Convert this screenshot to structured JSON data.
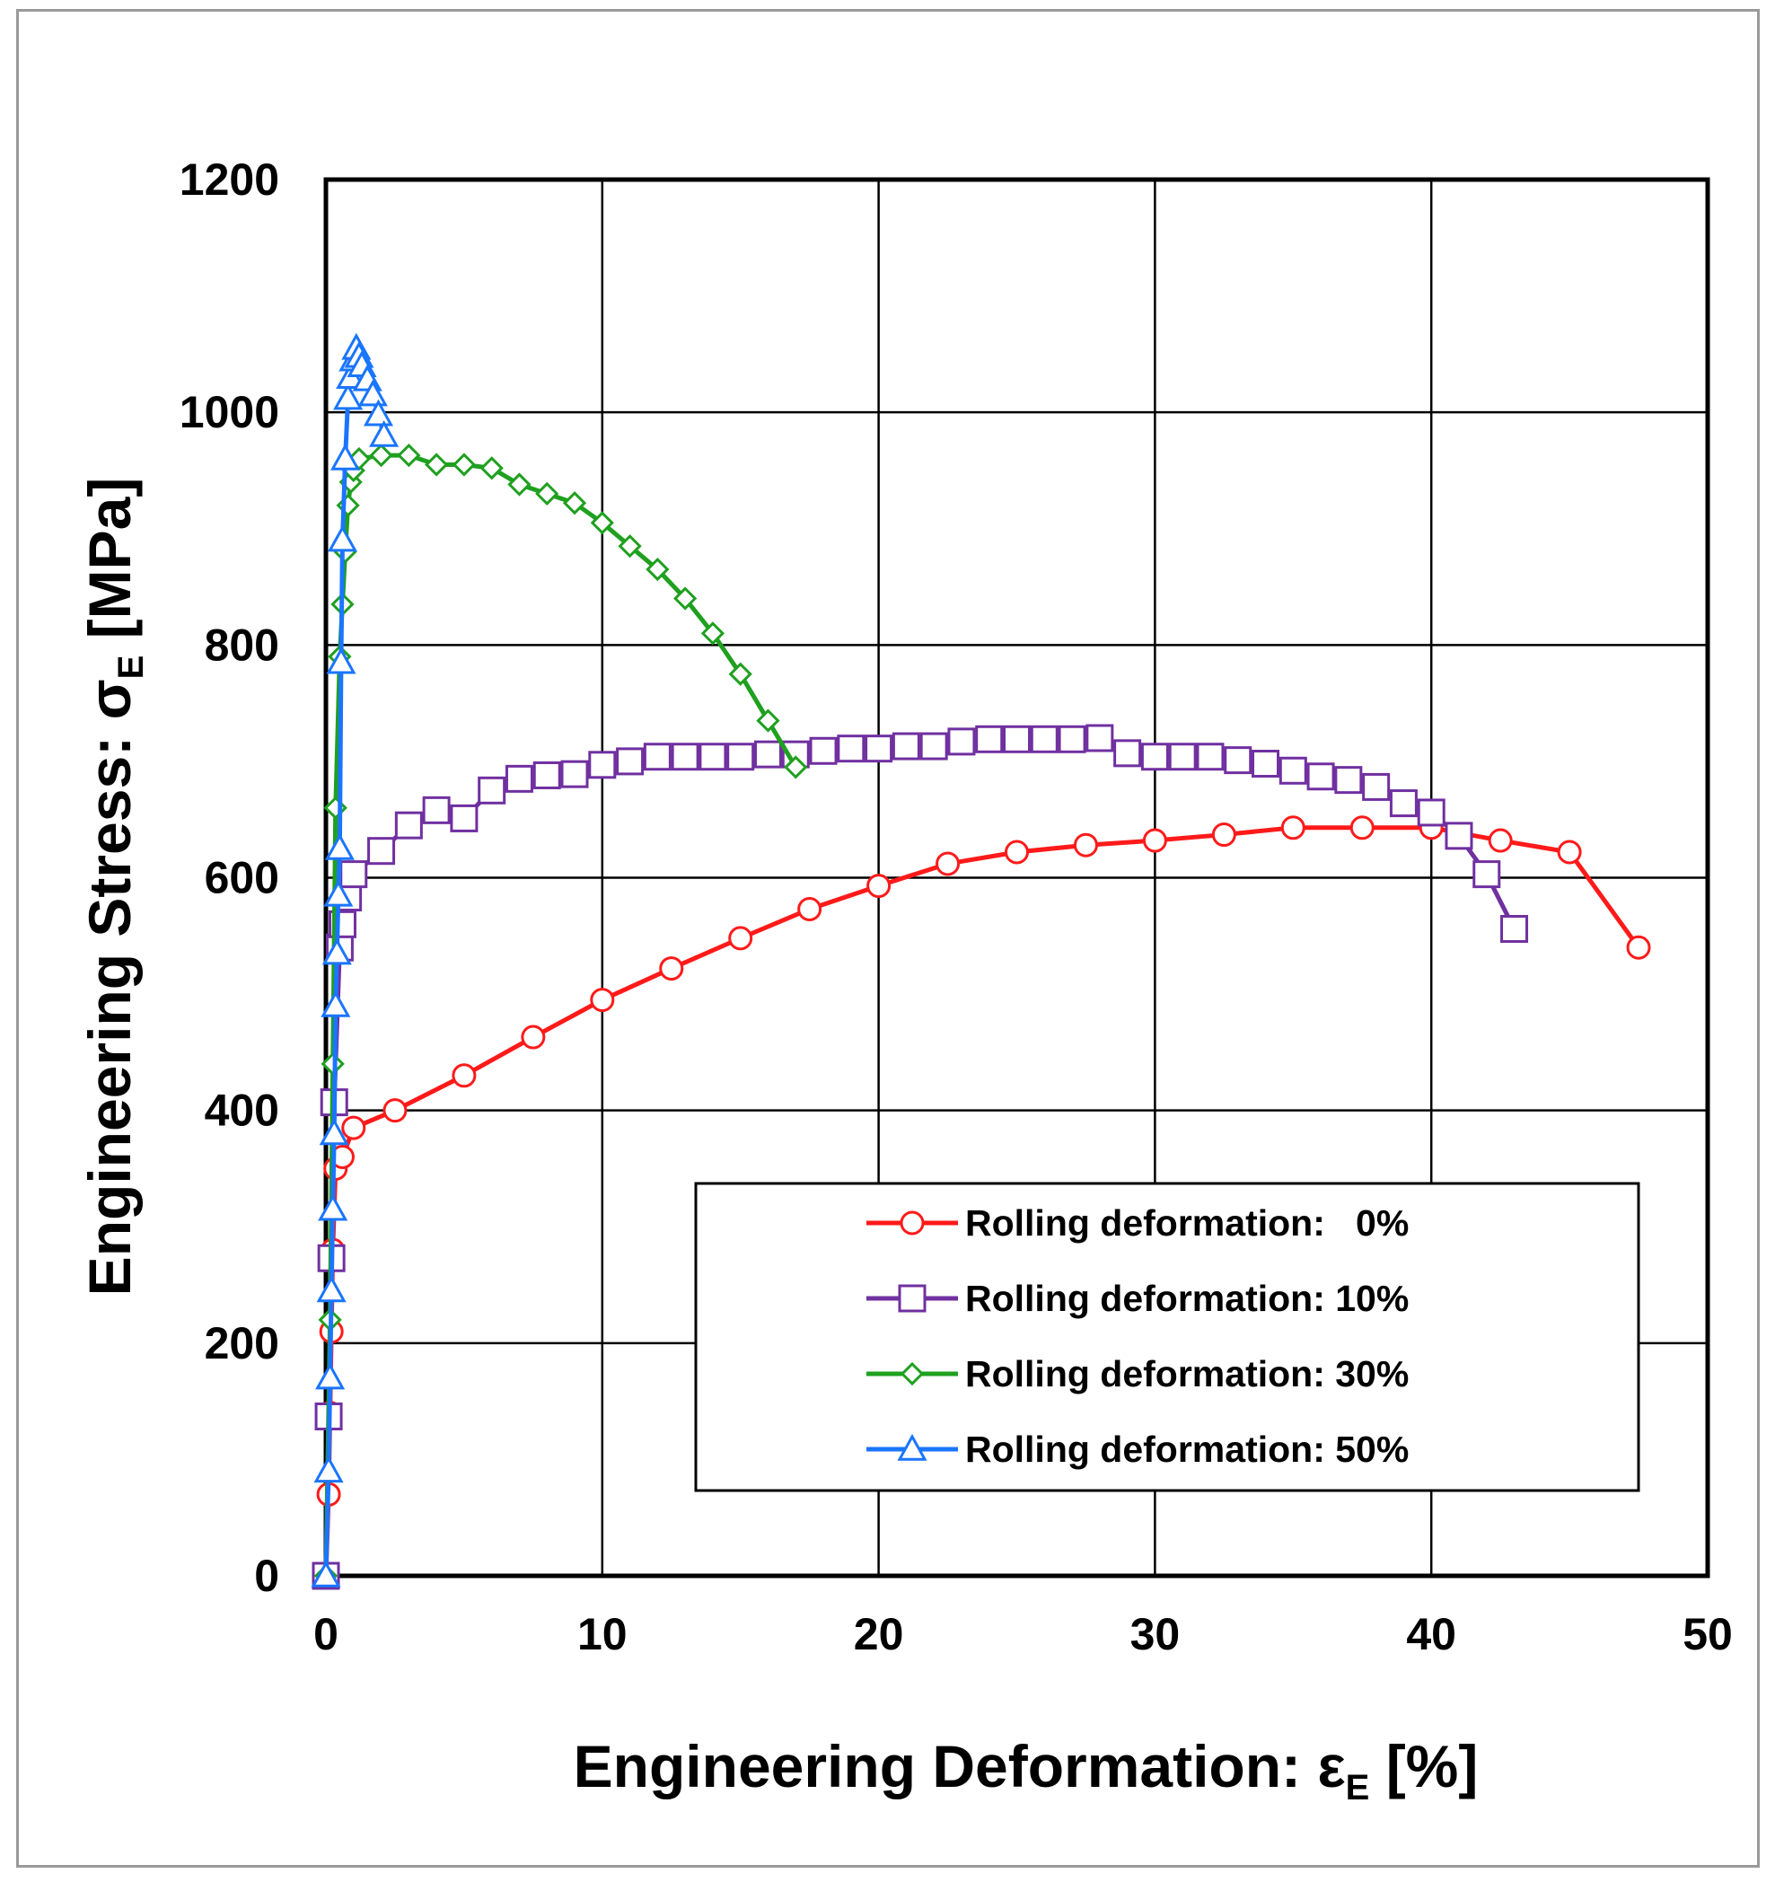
{
  "chart_data": {
    "type": "line",
    "xlabel": {
      "main": "Engineering Deformation: ε",
      "sub": "E",
      "unit": " [%]"
    },
    "ylabel": {
      "main": "Engineering Stress: σ",
      "sub": "E",
      "unit": " [MPa]"
    },
    "xlim": [
      0,
      50
    ],
    "ylim": [
      0,
      1200
    ],
    "xticks": [
      "0",
      "10",
      "20",
      "30",
      "40",
      "50"
    ],
    "yticks": [
      "0",
      "200",
      "400",
      "600",
      "800",
      "1000",
      "1200"
    ],
    "grid": true,
    "legend_position": "lower-right",
    "series": [
      {
        "name": "Rolling deformation:   0%",
        "color": "#ff1a1a",
        "marker": "circle",
        "points": [
          [
            0,
            0
          ],
          [
            0.1,
            70
          ],
          [
            0.15,
            140
          ],
          [
            0.2,
            210
          ],
          [
            0.25,
            280
          ],
          [
            0.35,
            350
          ],
          [
            0.6,
            360
          ],
          [
            1.0,
            385
          ],
          [
            2.5,
            400
          ],
          [
            5,
            430
          ],
          [
            7.5,
            463
          ],
          [
            10,
            495
          ],
          [
            12.5,
            522
          ],
          [
            15,
            548
          ],
          [
            17.5,
            573
          ],
          [
            20,
            593
          ],
          [
            22.5,
            612
          ],
          [
            25,
            622
          ],
          [
            27.5,
            628
          ],
          [
            30,
            632
          ],
          [
            32.5,
            637
          ],
          [
            35,
            643
          ],
          [
            37.5,
            643
          ],
          [
            40,
            643
          ],
          [
            42.5,
            632
          ],
          [
            45,
            622
          ],
          [
            47.5,
            540
          ]
        ]
      },
      {
        "name": "Rolling deformation: 10%",
        "color": "#7030a0",
        "marker": "square",
        "points": [
          [
            0,
            0
          ],
          [
            0.1,
            137
          ],
          [
            0.2,
            273
          ],
          [
            0.3,
            407
          ],
          [
            0.5,
            540
          ],
          [
            0.6,
            560
          ],
          [
            0.8,
            583
          ],
          [
            1,
            603
          ],
          [
            2,
            623
          ],
          [
            3,
            645
          ],
          [
            4,
            658
          ],
          [
            5,
            651
          ],
          [
            6,
            675
          ],
          [
            7,
            685
          ],
          [
            8,
            688
          ],
          [
            9,
            689
          ],
          [
            10,
            697
          ],
          [
            11,
            700
          ],
          [
            12,
            704
          ],
          [
            13,
            704
          ],
          [
            14,
            704
          ],
          [
            15,
            704
          ],
          [
            16,
            706
          ],
          [
            17,
            706
          ],
          [
            18,
            709
          ],
          [
            19,
            711
          ],
          [
            20,
            711
          ],
          [
            21,
            713
          ],
          [
            22,
            713
          ],
          [
            23,
            717
          ],
          [
            24,
            719
          ],
          [
            25,
            719
          ],
          [
            26,
            719
          ],
          [
            27,
            719
          ],
          [
            28,
            720
          ],
          [
            29,
            707
          ],
          [
            30,
            704
          ],
          [
            31,
            704
          ],
          [
            32,
            704
          ],
          [
            33,
            701
          ],
          [
            34,
            698
          ],
          [
            35,
            692
          ],
          [
            36,
            687
          ],
          [
            37,
            684
          ],
          [
            38,
            678
          ],
          [
            39,
            664
          ],
          [
            40,
            656
          ],
          [
            41,
            636
          ],
          [
            42,
            603
          ],
          [
            43,
            556
          ]
        ]
      },
      {
        "name": "Rolling deformation: 30%",
        "color": "#1fa01f",
        "marker": "diamond",
        "points": [
          [
            0,
            0
          ],
          [
            0.15,
            220
          ],
          [
            0.25,
            440
          ],
          [
            0.35,
            660
          ],
          [
            0.5,
            790
          ],
          [
            0.6,
            835
          ],
          [
            0.7,
            880
          ],
          [
            0.8,
            920
          ],
          [
            0.9,
            940
          ],
          [
            1.0,
            950
          ],
          [
            1.2,
            960
          ],
          [
            2,
            963
          ],
          [
            3,
            963
          ],
          [
            4,
            955
          ],
          [
            5,
            955
          ],
          [
            6,
            952
          ],
          [
            7,
            938
          ],
          [
            8,
            930
          ],
          [
            9,
            922
          ],
          [
            10,
            905
          ],
          [
            11,
            885
          ],
          [
            12,
            865
          ],
          [
            13,
            840
          ],
          [
            14,
            810
          ],
          [
            15,
            775
          ],
          [
            16,
            735
          ],
          [
            17,
            695
          ]
        ]
      },
      {
        "name": "Rolling deformation: 50%",
        "color": "#1a75ff",
        "marker": "triangle",
        "points": [
          [
            0,
            0
          ],
          [
            0.1,
            90
          ],
          [
            0.15,
            170
          ],
          [
            0.2,
            245
          ],
          [
            0.25,
            315
          ],
          [
            0.3,
            380
          ],
          [
            0.35,
            490
          ],
          [
            0.4,
            535
          ],
          [
            0.45,
            585
          ],
          [
            0.5,
            625
          ],
          [
            0.55,
            785
          ],
          [
            0.6,
            890
          ],
          [
            0.7,
            960
          ],
          [
            0.8,
            1012
          ],
          [
            0.9,
            1030
          ],
          [
            1.0,
            1045
          ],
          [
            1.1,
            1055
          ],
          [
            1.2,
            1048
          ],
          [
            1.3,
            1040
          ],
          [
            1.5,
            1028
          ],
          [
            1.7,
            1015
          ],
          [
            1.9,
            998
          ],
          [
            2.1,
            980
          ]
        ]
      }
    ]
  }
}
